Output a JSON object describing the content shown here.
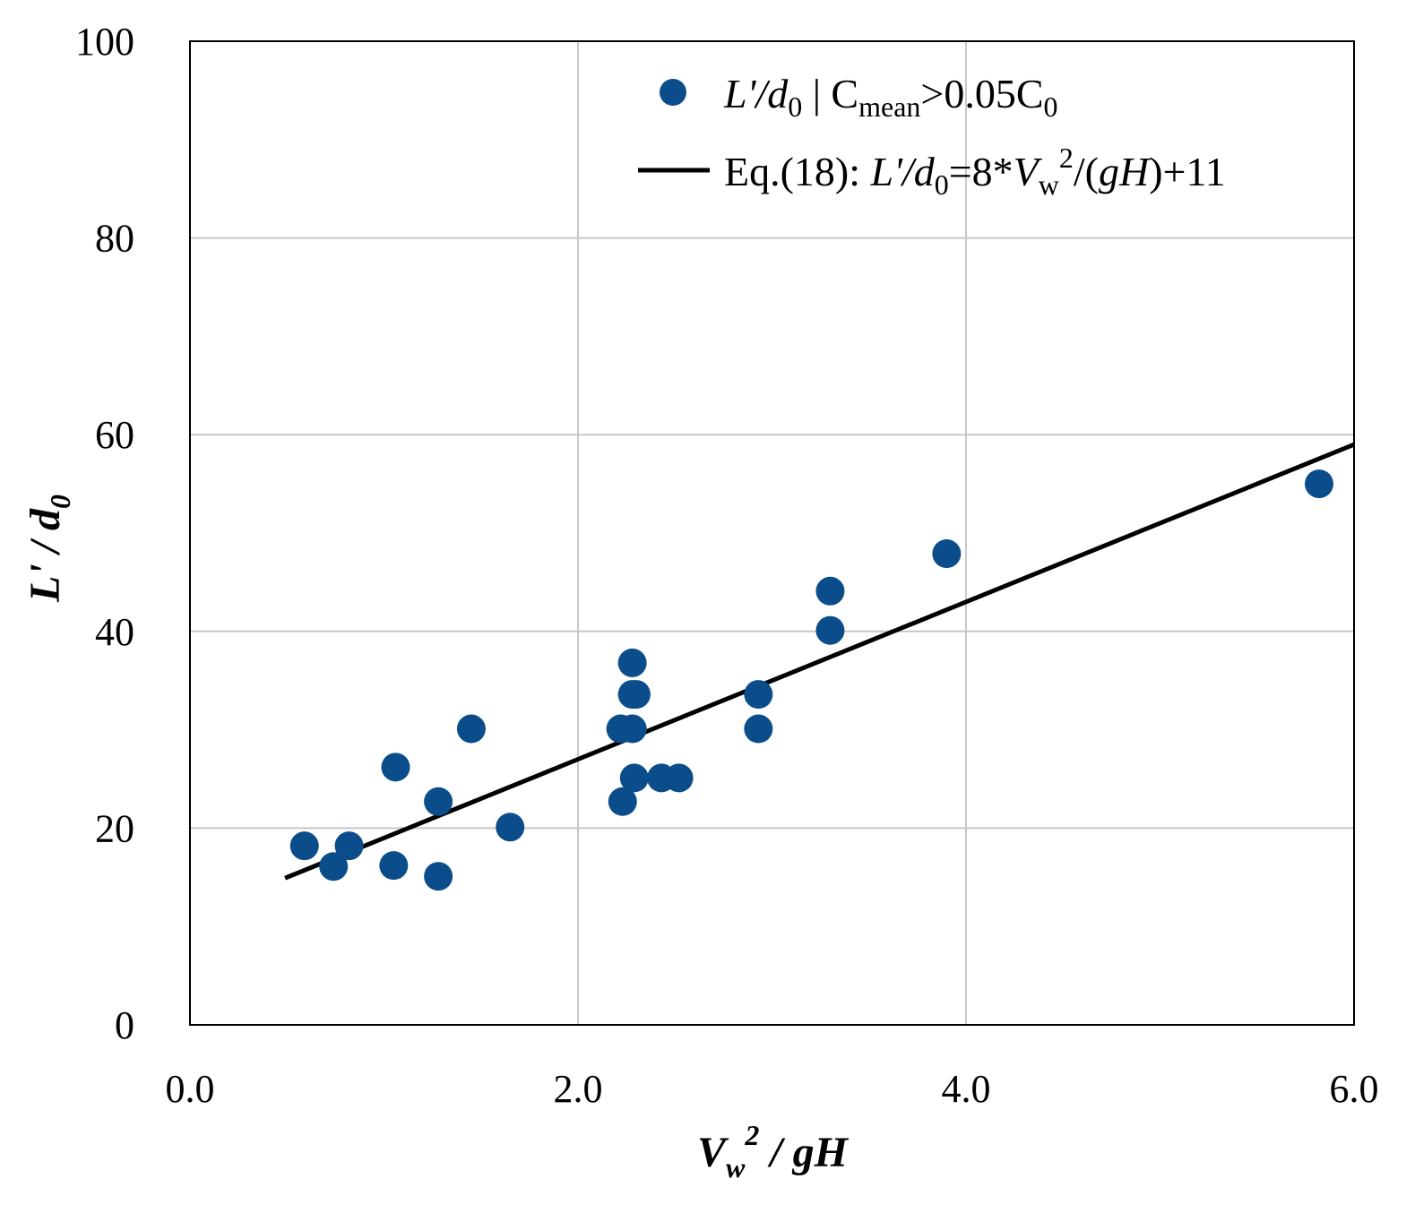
{
  "chart_data": {
    "type": "scatter",
    "x_axis": {
      "label_base": "V",
      "label_sub": "w",
      "label_sup": "2",
      "label_rest": " / gH",
      "range": [
        0,
        6
      ],
      "ticks": [
        "0.0",
        "2.0",
        "4.0",
        "6.0"
      ],
      "tick_values": [
        0,
        2,
        4,
        6
      ]
    },
    "y_axis": {
      "label_base": "L' / d",
      "label_sub": "0",
      "range": [
        0,
        100
      ],
      "ticks": [
        "0",
        "20",
        "40",
        "60",
        "80",
        "100"
      ],
      "tick_values": [
        0,
        20,
        40,
        60,
        80,
        100
      ]
    },
    "grid": true,
    "legend_position": "top-right",
    "series": [
      {
        "name": "L'/d0 | Cmean>0.05C0",
        "kind": "scatter",
        "color": "#0b4d8a",
        "legend_parts": {
          "p1": "L'/d",
          "p1_sub": "0",
          "p2": " | C",
          "p2_sub": "mean",
          "p3": ">0.05C",
          "p3_sub": "0"
        },
        "points": [
          {
            "x": 0.59,
            "y": 18.2
          },
          {
            "x": 0.74,
            "y": 16.1
          },
          {
            "x": 0.82,
            "y": 18.2
          },
          {
            "x": 1.05,
            "y": 16.2
          },
          {
            "x": 1.06,
            "y": 26.2
          },
          {
            "x": 1.28,
            "y": 15.1
          },
          {
            "x": 1.28,
            "y": 22.7
          },
          {
            "x": 1.45,
            "y": 30.1
          },
          {
            "x": 1.65,
            "y": 20.1
          },
          {
            "x": 2.22,
            "y": 30.1
          },
          {
            "x": 2.23,
            "y": 22.7
          },
          {
            "x": 2.28,
            "y": 36.8
          },
          {
            "x": 2.28,
            "y": 33.6
          },
          {
            "x": 2.3,
            "y": 33.6
          },
          {
            "x": 2.28,
            "y": 30.1
          },
          {
            "x": 2.29,
            "y": 25.1
          },
          {
            "x": 2.43,
            "y": 25.1
          },
          {
            "x": 2.52,
            "y": 25.1
          },
          {
            "x": 2.93,
            "y": 33.6
          },
          {
            "x": 2.93,
            "y": 30.1
          },
          {
            "x": 3.3,
            "y": 44.1
          },
          {
            "x": 3.3,
            "y": 40.1
          },
          {
            "x": 3.9,
            "y": 47.9
          },
          {
            "x": 5.82,
            "y": 55.0
          }
        ]
      },
      {
        "name": "Eq.(18): L'/d0=8*Vw2/(gH)+11",
        "kind": "line",
        "color": "#000000",
        "equation": {
          "slope": 8,
          "intercept": 11
        },
        "x_range": [
          0.49,
          6.0
        ],
        "legend_parts": {
          "p1": "Eq.(18): ",
          "p2": "L'/d",
          "p2_sub": "0",
          "p3": "=8*",
          "p4": "V",
          "p4_sub": "w",
          "p4_sup": "2",
          "p5": "/(",
          "p6": "gH",
          "p7": ")+11"
        }
      }
    ]
  }
}
